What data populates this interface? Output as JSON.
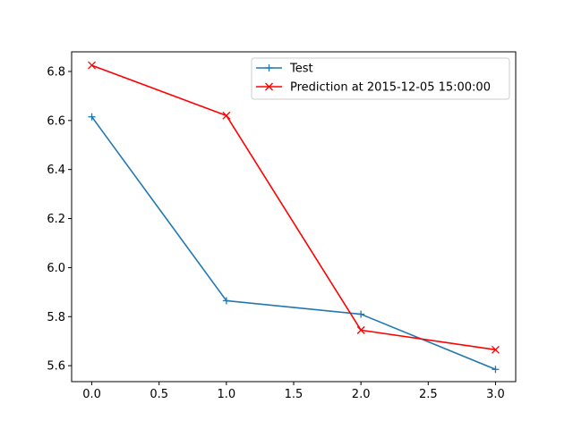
{
  "chart_data": {
    "type": "line",
    "x": [
      0.0,
      1.0,
      2.0,
      3.0
    ],
    "series": [
      {
        "name": "Test",
        "values": [
          6.615,
          5.865,
          5.81,
          5.585
        ],
        "color": "#1f77b4",
        "marker": "plus"
      },
      {
        "name": "Prediction at 2015-12-05 15:00:00",
        "values": [
          6.825,
          6.62,
          5.745,
          5.665
        ],
        "color": "#ff0000",
        "marker": "x"
      }
    ],
    "xticks": [
      "0.0",
      "0.5",
      "1.0",
      "1.5",
      "2.0",
      "2.5",
      "3.0"
    ],
    "yticks": [
      "5.6",
      "5.8",
      "6.0",
      "6.2",
      "6.4",
      "6.6",
      "6.8"
    ],
    "xlim": [
      -0.15,
      3.15
    ],
    "ylim": [
      5.535,
      6.88
    ],
    "title": "",
    "xlabel": "",
    "ylabel": "",
    "grid": false,
    "legend_position": "top-right"
  }
}
